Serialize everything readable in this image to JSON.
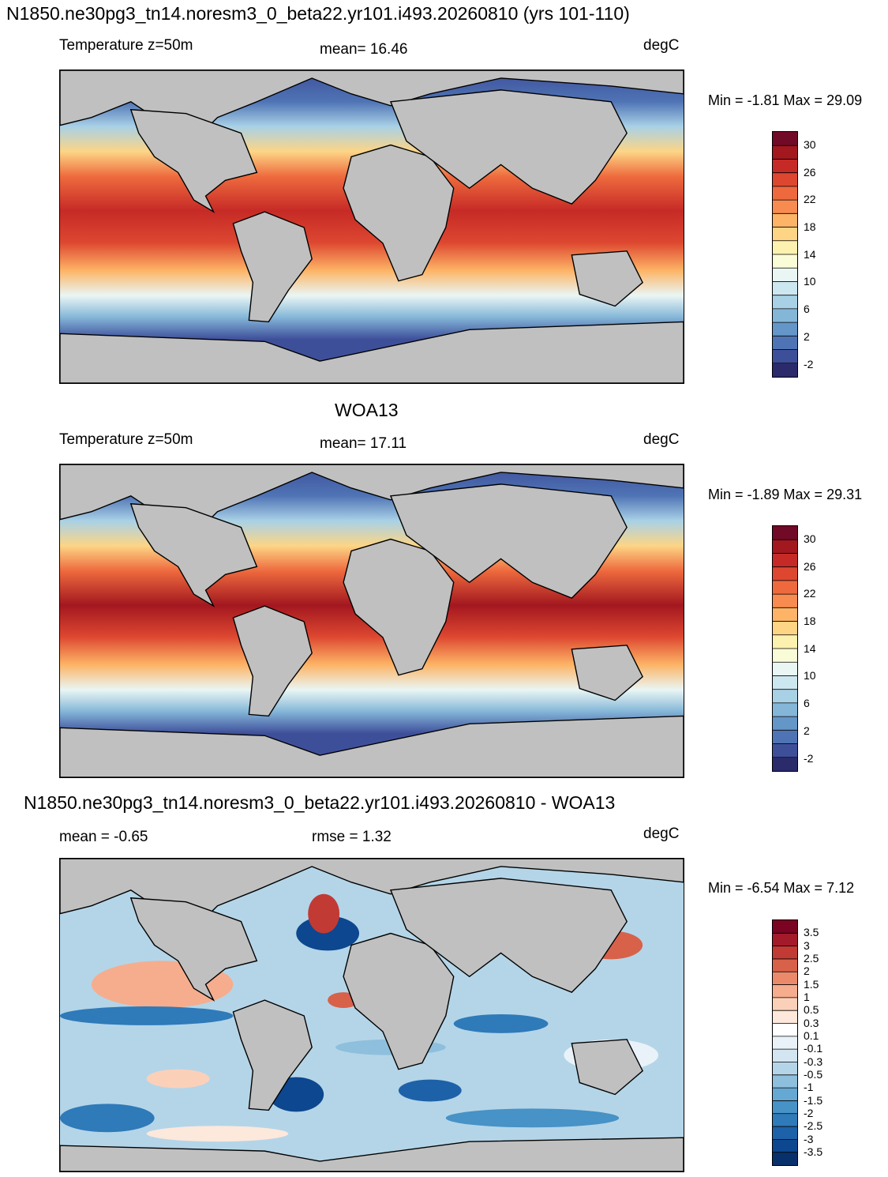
{
  "panels": [
    {
      "title": "N1850.ne30pg3_tn14.noresm3_0_beta22.yr101.i493.20260810 (yrs 101-110)",
      "left_label": "Temperature z=50m",
      "center_label": "mean=  16.46",
      "units": "degC",
      "minmax": "Min =  -1.81 Max =  29.09",
      "colorbar": {
        "colors": [
          "#2b2a6b",
          "#3e4f9a",
          "#4f74b5",
          "#6496c8",
          "#84b6d8",
          "#a9d1e6",
          "#cde7f0",
          "#eaf6f4",
          "#fafcd8",
          "#fdf1b0",
          "#fdd585",
          "#fdb466",
          "#f88c50",
          "#ee6a3e",
          "#dd4730",
          "#c62a26",
          "#a3171f",
          "#700a26"
        ],
        "ticks": [
          "30",
          "26",
          "22",
          "18",
          "14",
          "10",
          "6",
          "2",
          "-2"
        ]
      }
    },
    {
      "title": "WOA13",
      "left_label": "Temperature z=50m",
      "center_label": "mean=  17.11",
      "units": "degC",
      "minmax": "Min =  -1.89 Max =  29.31",
      "colorbar": {
        "colors": [
          "#2b2a6b",
          "#3e4f9a",
          "#4f74b5",
          "#6496c8",
          "#84b6d8",
          "#a9d1e6",
          "#cde7f0",
          "#eaf6f4",
          "#fafcd8",
          "#fdf1b0",
          "#fdd585",
          "#fdb466",
          "#f88c50",
          "#ee6a3e",
          "#dd4730",
          "#c62a26",
          "#a3171f",
          "#700a26"
        ],
        "ticks": [
          "30",
          "26",
          "22",
          "18",
          "14",
          "10",
          "6",
          "2",
          "-2"
        ]
      }
    },
    {
      "title": "N1850.ne30pg3_tn14.noresm3_0_beta22.yr101.i493.20260810 - WOA13",
      "left_label": "mean =  -0.65",
      "center_label": "rmse =   1.32",
      "units": "degC",
      "minmax": "Min =  -6.54 Max =   7.12",
      "colorbar": {
        "colors": [
          "#08306b",
          "#0d478f",
          "#1d62a8",
          "#2f7ab9",
          "#4792c6",
          "#65a8d3",
          "#8ebfdd",
          "#b4d5e8",
          "#d2e5f0",
          "#e9f2f8",
          "#ffffff",
          "#fde8dc",
          "#fbd0b9",
          "#f5ad8d",
          "#ea8a6a",
          "#d86149",
          "#c23a34",
          "#a31a2a",
          "#7a0422"
        ],
        "ticks": [
          "3.5",
          "3",
          "2.5",
          "2",
          "1.5",
          "1",
          "0.5",
          "0.3",
          "0.1",
          "-0.1",
          "-0.3",
          "-0.5",
          "-1",
          "-1.5",
          "-2",
          "-2.5",
          "-3",
          "-3.5"
        ]
      }
    }
  ]
}
